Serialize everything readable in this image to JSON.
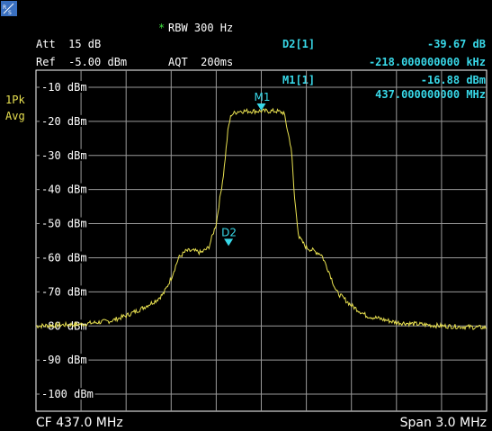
{
  "header": {
    "rbw_star": "*",
    "rbw": "RBW 300 Hz",
    "att": "Att  15 dB",
    "ref": "Ref  -5.00 dBm",
    "aqt": "AQT  200ms"
  },
  "markers_table": {
    "d2_label": "D2[1]",
    "d2_level": "-39.67 dB",
    "d2_freq": "-218.000000000 kHz",
    "m1_label": "M1[1]",
    "m1_level": "-16.88 dBm",
    "m1_freq": "437.000000000 MHz"
  },
  "trace_labels": {
    "detector": "1Pk",
    "mode": "Avg"
  },
  "footer": {
    "cf": "CF 437.0 MHz",
    "span": "Span 3.0 MHz"
  },
  "colors": {
    "trace": "#e8e050",
    "marker": "#38d8e8",
    "grid": "#ffffff",
    "background": "#000000"
  },
  "icons": {
    "logo": "rohde-schwarz-logo-icon",
    "marker_triangle": "marker-triangle-icon"
  },
  "chart_data": {
    "type": "line",
    "ylim": [
      -105,
      -5
    ],
    "xlim": [
      435.5,
      438.5
    ],
    "x_unit": "MHz",
    "y_unit": "dBm",
    "ytick_labels": [
      "-10 dBm",
      "-20 dBm",
      "-30 dBm",
      "-40 dBm",
      "-50 dBm",
      "-60 dBm",
      "-70 dBm",
      "-80 dBm",
      "-90 dBm",
      "-100 dBm"
    ],
    "ytick_values": [
      -10,
      -20,
      -30,
      -40,
      -50,
      -60,
      -70,
      -80,
      -90,
      -100
    ],
    "grid": true,
    "series": [
      {
        "x": [
          435.5,
          435.8,
          436.0,
          436.1,
          436.2,
          436.3,
          436.35,
          436.4,
          436.45,
          436.5,
          436.55,
          436.6,
          436.65,
          436.7,
          436.75,
          436.78,
          436.8,
          436.85,
          436.9,
          437.0,
          437.1,
          437.15,
          437.2,
          437.22,
          437.25,
          437.3,
          437.35,
          437.4,
          437.45,
          437.5,
          437.6,
          437.7,
          437.9,
          438.2,
          438.5
        ],
        "y": [
          -80,
          -79.5,
          -78.5,
          -77,
          -75,
          -72.5,
          -70.5,
          -66,
          -60,
          -58,
          -58,
          -58.5,
          -57,
          -50,
          -35,
          -22,
          -18,
          -17,
          -17,
          -17,
          -17,
          -17.5,
          -28,
          -42,
          -54,
          -57,
          -58,
          -59,
          -64,
          -70,
          -74,
          -77,
          -79,
          -80,
          -80.5
        ]
      }
    ],
    "markers": [
      {
        "label": "M1",
        "x": 437.0,
        "y": -16.88
      },
      {
        "label": "D2",
        "x": 436.782,
        "y": -56.55
      }
    ]
  }
}
